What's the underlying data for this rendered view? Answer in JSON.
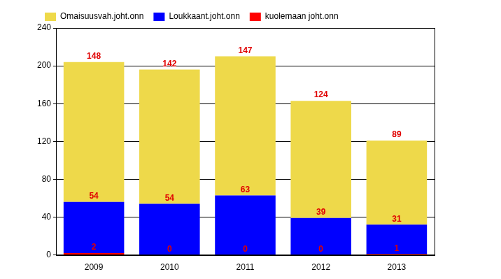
{
  "chart_data": {
    "type": "bar",
    "stacked": true,
    "data_labels": true,
    "grid": true,
    "legend": "top-left",
    "categories": [
      "2009",
      "2010",
      "2011",
      "2012",
      "2013"
    ],
    "series": [
      {
        "name": "kuolemaan joht.onn",
        "color": "#ff0000",
        "values": [
          2,
          0,
          0,
          0,
          1
        ]
      },
      {
        "name": "Loukkaant.joht.onn",
        "color": "#0000ff",
        "values": [
          54,
          54,
          63,
          39,
          31
        ]
      },
      {
        "name": "Omaisuusvah.joht.onn",
        "color": "#eed94a",
        "values": [
          148,
          142,
          147,
          124,
          89
        ]
      }
    ],
    "ylim": [
      0,
      240
    ],
    "yticks": [
      0,
      40,
      80,
      120,
      160,
      200,
      240
    ]
  }
}
